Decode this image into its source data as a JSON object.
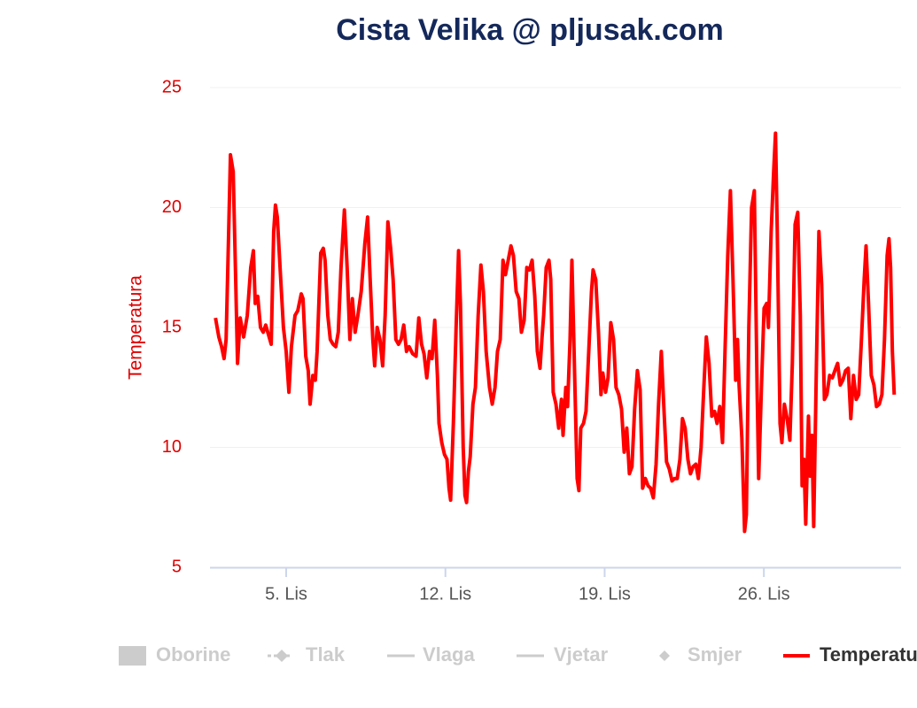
{
  "chart_data": {
    "type": "line",
    "title": "Cista Velika @ pljusak.com",
    "y_label": "Temperatura",
    "xlim": [
      1.65,
      32.03
    ],
    "ylim": [
      5,
      25
    ],
    "yticks": [
      5,
      10,
      15,
      20,
      25
    ],
    "grid": true,
    "xticks": [
      {
        "value": 5,
        "label": "5. Lis"
      },
      {
        "value": 12,
        "label": "12. Lis"
      },
      {
        "value": 19,
        "label": "19. Lis"
      },
      {
        "value": 26,
        "label": "26. Lis"
      }
    ],
    "hidden_series": [
      "Oborine",
      "Tlak",
      "Vlaga",
      "Vjetar",
      "Smjer"
    ],
    "hidden_color": "#cccccc",
    "legend": "bottom",
    "series": [
      {
        "name": "Temperatura",
        "color": "#ff0000",
        "x": [
          1.89,
          2.04,
          2.16,
          2.27,
          2.36,
          2.47,
          2.55,
          2.67,
          2.78,
          2.86,
          2.98,
          3.13,
          3.29,
          3.44,
          3.56,
          3.64,
          3.75,
          3.87,
          3.99,
          4.1,
          4.22,
          4.34,
          4.45,
          4.53,
          4.61,
          4.73,
          4.88,
          5.0,
          5.12,
          5.23,
          5.39,
          5.51,
          5.66,
          5.74,
          5.86,
          5.97,
          6.05,
          6.17,
          6.28,
          6.36,
          6.52,
          6.63,
          6.71,
          6.83,
          6.94,
          7.06,
          7.18,
          7.29,
          7.41,
          7.56,
          7.68,
          7.8,
          7.91,
          8.03,
          8.15,
          8.3,
          8.46,
          8.58,
          8.69,
          8.81,
          8.89,
          9.0,
          9.12,
          9.24,
          9.35,
          9.47,
          9.59,
          9.7,
          9.82,
          9.94,
          10.05,
          10.17,
          10.29,
          10.4,
          10.56,
          10.71,
          10.83,
          10.95,
          11.06,
          11.18,
          11.3,
          11.41,
          11.53,
          11.65,
          11.72,
          11.84,
          11.96,
          12.07,
          12.16,
          12.23,
          12.35,
          12.47,
          12.58,
          12.66,
          12.78,
          12.86,
          12.93,
          13.01,
          13.09,
          13.21,
          13.32,
          13.44,
          13.56,
          13.67,
          13.79,
          13.94,
          14.06,
          14.18,
          14.29,
          14.41,
          14.53,
          14.64,
          14.76,
          14.88,
          14.99,
          15.11,
          15.23,
          15.34,
          15.46,
          15.58,
          15.69,
          15.81,
          15.93,
          16.04,
          16.16,
          16.24,
          16.32,
          16.43,
          16.55,
          16.63,
          16.74,
          16.86,
          16.98,
          17.1,
          17.17,
          17.29,
          17.37,
          17.48,
          17.56,
          17.68,
          17.79,
          17.87,
          17.95,
          18.07,
          18.18,
          18.3,
          18.42,
          18.49,
          18.61,
          18.73,
          18.84,
          18.92,
          19.04,
          19.15,
          19.27,
          19.39,
          19.5,
          19.62,
          19.74,
          19.86,
          19.97,
          20.09,
          20.2,
          20.32,
          20.44,
          20.56,
          20.67,
          20.79,
          20.91,
          21.02,
          21.14,
          21.26,
          21.37,
          21.49,
          21.61,
          21.72,
          21.84,
          21.96,
          22.07,
          22.19,
          22.31,
          22.42,
          22.54,
          22.66,
          22.77,
          22.89,
          23.01,
          23.12,
          23.24,
          23.36,
          23.47,
          23.59,
          23.71,
          23.83,
          23.94,
          24.06,
          24.18,
          24.29,
          24.41,
          24.53,
          24.64,
          24.76,
          24.84,
          24.91,
          25.03,
          25.15,
          25.23,
          25.34,
          25.46,
          25.58,
          25.7,
          25.77,
          25.89,
          26.01,
          26.12,
          26.2,
          26.32,
          26.43,
          26.51,
          26.59,
          26.71,
          26.79,
          26.9,
          27.02,
          27.14,
          27.25,
          27.37,
          27.49,
          27.6,
          27.68,
          27.76,
          27.84,
          27.96,
          28.03,
          28.11,
          28.19,
          28.31,
          28.42,
          28.54,
          28.66,
          28.77,
          28.89,
          29.01,
          29.12,
          29.24,
          29.36,
          29.47,
          29.59,
          29.71,
          29.82,
          29.94,
          30.06,
          30.17,
          30.29,
          30.41,
          30.49,
          30.6,
          30.72,
          30.84,
          30.95,
          31.07,
          31.19,
          31.3,
          31.42,
          31.5,
          31.57,
          31.65,
          31.73
        ],
        "values": [
          15.4,
          14.6,
          14.2,
          13.7,
          14.5,
          19,
          22.2,
          21.5,
          17,
          13.5,
          15.4,
          14.6,
          15.5,
          17.5,
          18.2,
          16,
          16.3,
          15,
          14.8,
          15.1,
          14.7,
          14.3,
          19,
          20.1,
          19.6,
          17.5,
          15,
          14,
          12.3,
          14.2,
          15.5,
          15.7,
          16.4,
          16.2,
          13.8,
          13.2,
          11.8,
          13,
          12.8,
          14,
          18.1,
          18.3,
          17.8,
          15.5,
          14.5,
          14.3,
          14.2,
          14.8,
          17.5,
          19.9,
          17.5,
          14.5,
          16.2,
          14.8,
          15.5,
          16.5,
          18.5,
          19.6,
          17,
          14.5,
          13.4,
          15,
          14.5,
          13.4,
          15.5,
          19.4,
          18.3,
          17,
          14.5,
          14.3,
          14.5,
          15.1,
          14,
          14.2,
          13.9,
          13.8,
          15.4,
          14.3,
          13.9,
          12.9,
          14,
          13.7,
          15.3,
          13,
          11,
          10.2,
          9.7,
          9.5,
          8.3,
          7.8,
          11,
          15,
          18.2,
          16,
          10,
          8,
          7.7,
          9,
          9.6,
          11.8,
          12.5,
          15.5,
          17.6,
          16.5,
          14,
          12.5,
          11.8,
          12.5,
          14,
          14.5,
          17.8,
          17.2,
          17.8,
          18.4,
          18,
          16.5,
          16.2,
          14.8,
          15.3,
          17.5,
          17.4,
          17.8,
          16.3,
          14,
          13.3,
          14.5,
          15.5,
          17.5,
          17.8,
          17,
          12.3,
          11.8,
          10.8,
          12,
          10.5,
          12.5,
          11.7,
          14.5,
          17.8,
          13,
          8.7,
          8.2,
          10.8,
          11,
          11.5,
          14,
          16.5,
          17.4,
          17,
          14.8,
          12.2,
          13.1,
          12.3,
          12.9,
          15.2,
          14.5,
          12.5,
          12.2,
          11.6,
          9.8,
          10.8,
          8.9,
          9.2,
          11.6,
          13.2,
          12.4,
          8.3,
          8.7,
          8.4,
          8.3,
          7.9,
          9.3,
          11.8,
          14,
          11.5,
          9.4,
          9.1,
          8.6,
          8.7,
          8.7,
          9.5,
          11.2,
          10.8,
          9.5,
          8.9,
          9.2,
          9.3,
          8.7,
          10,
          12.5,
          14.6,
          13.5,
          11.3,
          11.5,
          11,
          11.7,
          10.2,
          14,
          18,
          20.7,
          17,
          12.8,
          14.5,
          12.6,
          10.4,
          6.5,
          7.2,
          15,
          20,
          20.7,
          12.5,
          8.7,
          12.5,
          15.8,
          16,
          15,
          19,
          21.5,
          23.1,
          19,
          11,
          10.2,
          11.8,
          11.2,
          10.3,
          13.5,
          19.3,
          19.8,
          15.5,
          8.4,
          9.5,
          6.8,
          11.3,
          8.8,
          10.5,
          6.7,
          13.5,
          19,
          16.8,
          12,
          12.2,
          13,
          12.9,
          13.2,
          13.5,
          12.6,
          12.8,
          13.2,
          13.3,
          11.2,
          13,
          12,
          12.2,
          14.5,
          17,
          18.4,
          16,
          13,
          12.6,
          11.7,
          11.8,
          12.2,
          14.5,
          18,
          18.7,
          17.5,
          14,
          12.2
        ]
      }
    ]
  }
}
